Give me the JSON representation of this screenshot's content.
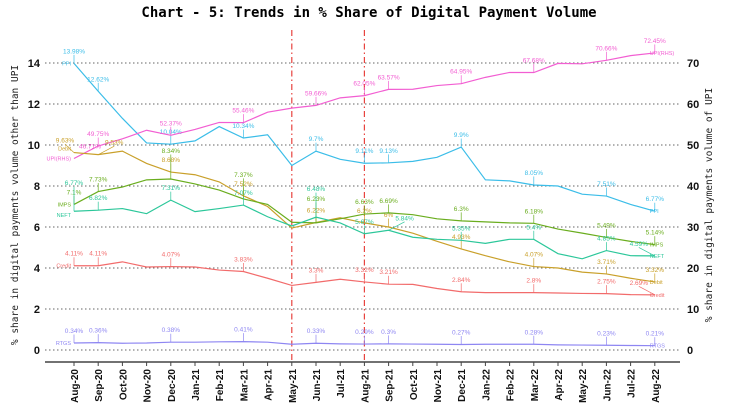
{
  "chart_data": {
    "type": "line",
    "title": "Chart - 5: Trends in % Share of Digital Payment Volume",
    "ylabel_left": "% share in digital payments volume other than UPI",
    "ylabel_right": "% share in digital payments volume of UPI",
    "ylim_left": [
      0,
      14
    ],
    "ylim_right": [
      0,
      70
    ],
    "yticks_left": [
      0,
      2,
      4,
      6,
      8,
      10,
      12,
      14
    ],
    "yticks_right": [
      0,
      10,
      20,
      30,
      40,
      50,
      60,
      70
    ],
    "grid": "horizontal dotted",
    "categories": [
      "Aug-20",
      "Sep-20",
      "Oct-20",
      "Nov-20",
      "Dec-20",
      "Jan-21",
      "Feb-21",
      "Mar-21",
      "Apr-21",
      "May-21",
      "Jun-21",
      "Jul-21",
      "Aug-21",
      "Sep-21",
      "Oct-21",
      "Nov-21",
      "Dec-21",
      "Jan-22",
      "Feb-22",
      "Mar-22",
      "Apr-22",
      "May-22",
      "Jun-22",
      "Jul-22",
      "Aug-22"
    ],
    "vertical_markers": [
      "May-21",
      "Aug-21"
    ],
    "marker_color": "#e8433f",
    "series": [
      {
        "name": "PPI",
        "start_name": "PPI",
        "axis": "left",
        "color": "#3bbde8",
        "values": [
          13.98,
          12.62,
          11.3,
          10.1,
          10.04,
          10.2,
          10.9,
          10.34,
          10.5,
          9.0,
          9.7,
          9.3,
          9.11,
          9.13,
          9.2,
          9.4,
          9.9,
          8.3,
          8.25,
          8.05,
          8.0,
          7.6,
          7.51,
          7.1,
          6.77
        ],
        "labels": [
          [
            0,
            "13.98%"
          ],
          [
            1,
            "12.62%"
          ],
          [
            4,
            "10.04%"
          ],
          [
            7,
            "10.34%"
          ],
          [
            10,
            "9.7%"
          ],
          [
            12,
            "9.11%"
          ],
          [
            13,
            "9.13%"
          ],
          [
            16,
            "9.9%"
          ],
          [
            19,
            "8.05%"
          ],
          [
            22,
            "7.51%"
          ],
          [
            24,
            "6.77%"
          ]
        ]
      },
      {
        "name": "UPI(RHS)",
        "start_name": "UPI(RHS)",
        "axis": "right",
        "color": "#f25ed2",
        "values": [
          46.71,
          49.75,
          51.5,
          53.6,
          52.37,
          53.8,
          55.5,
          55.46,
          58.0,
          59.0,
          59.66,
          61.5,
          62.05,
          63.57,
          63.6,
          64.5,
          64.95,
          66.5,
          67.7,
          67.68,
          69.9,
          69.8,
          70.66,
          71.8,
          72.45
        ],
        "labels": [
          [
            0,
            "46.71%"
          ],
          [
            1,
            "49.75%"
          ],
          [
            4,
            "52.37%"
          ],
          [
            7,
            "55.46%"
          ],
          [
            10,
            "59.66%"
          ],
          [
            12,
            "62.05%"
          ],
          [
            13,
            "63.57%"
          ],
          [
            16,
            "64.95%"
          ],
          [
            19,
            "67.68%"
          ],
          [
            22,
            "70.66%"
          ],
          [
            24,
            "72.45%"
          ]
        ]
      },
      {
        "name": "Debit",
        "start_name": "Debit",
        "axis": "left",
        "color": "#c9a02a",
        "values": [
          9.63,
          9.53,
          9.7,
          9.1,
          8.68,
          8.55,
          8.2,
          7.52,
          7.0,
          5.95,
          6.22,
          6.45,
          6.2,
          6.0,
          5.7,
          5.3,
          4.93,
          4.6,
          4.3,
          4.07,
          4.0,
          3.8,
          3.71,
          3.5,
          3.32
        ],
        "labels": [
          [
            0,
            "9.63%"
          ],
          [
            1,
            "9.53%"
          ],
          [
            4,
            "8.68%"
          ],
          [
            7,
            "7.52%"
          ],
          [
            10,
            "6.22%"
          ],
          [
            12,
            "6.2%"
          ],
          [
            13,
            "6%"
          ],
          [
            16,
            "4.93%"
          ],
          [
            19,
            "4.07%"
          ],
          [
            22,
            "3.71%"
          ],
          [
            24,
            "3.32%"
          ]
        ]
      },
      {
        "name": "IMPS",
        "start_name": "IMPS",
        "axis": "left",
        "color": "#6aad1e",
        "values": [
          7.1,
          7.73,
          7.95,
          8.3,
          8.34,
          8.1,
          7.8,
          7.37,
          7.1,
          6.23,
          6.2,
          6.4,
          6.63,
          6.69,
          6.6,
          6.4,
          6.3,
          6.25,
          6.2,
          6.18,
          5.9,
          5.7,
          5.49,
          5.3,
          5.14
        ],
        "labels": [
          [
            0,
            "7.1%"
          ],
          [
            1,
            "7.73%"
          ],
          [
            4,
            "8.34%"
          ],
          [
            7,
            "7.37%"
          ],
          [
            10,
            "6.23%"
          ],
          [
            12,
            "6.63%"
          ],
          [
            13,
            "6.69%"
          ],
          [
            16,
            "6.3%"
          ],
          [
            19,
            "6.18%"
          ],
          [
            22,
            "5.49%"
          ],
          [
            24,
            "5.14%"
          ]
        ]
      },
      {
        "name": "NEFT",
        "start_name": "NEFT",
        "axis": "left",
        "color": "#2cc79a",
        "values": [
          6.77,
          6.82,
          6.9,
          6.65,
          7.31,
          6.75,
          6.9,
          7.07,
          6.5,
          6.05,
          6.48,
          6.2,
          5.67,
          5.84,
          5.5,
          5.4,
          5.35,
          5.2,
          5.4,
          5.4,
          4.7,
          4.45,
          4.85,
          4.6,
          4.59
        ],
        "labels": [
          [
            0,
            "6.77%"
          ],
          [
            1,
            "6.82%"
          ],
          [
            4,
            "7.31%"
          ],
          [
            7,
            "7.07%"
          ],
          [
            10,
            "6.48%"
          ],
          [
            12,
            "5.67%"
          ],
          [
            13,
            "5.84%"
          ],
          [
            16,
            "5.35%"
          ],
          [
            19,
            "5.4%"
          ],
          [
            22,
            "4.85%"
          ],
          [
            24,
            "4.59%"
          ]
        ]
      },
      {
        "name": "Credit",
        "start_name": "Credit",
        "axis": "left",
        "color": "#f26b6b",
        "values": [
          4.11,
          4.11,
          4.3,
          4.05,
          4.07,
          4.05,
          3.9,
          3.83,
          3.5,
          3.15,
          3.3,
          3.45,
          3.32,
          3.21,
          3.2,
          3.0,
          2.84,
          2.8,
          2.8,
          2.8,
          2.78,
          2.76,
          2.75,
          2.7,
          2.69
        ],
        "labels": [
          [
            0,
            "4.11%"
          ],
          [
            1,
            "4.11%"
          ],
          [
            4,
            "4.07%"
          ],
          [
            7,
            "3.83%"
          ],
          [
            10,
            "3.3%"
          ],
          [
            12,
            "3.32%"
          ],
          [
            13,
            "3.21%"
          ],
          [
            16,
            "2.84%"
          ],
          [
            19,
            "2.8%"
          ],
          [
            22,
            "2.75%"
          ],
          [
            24,
            "2.69%"
          ]
        ]
      },
      {
        "name": "RTGS",
        "start_name": "RTGS",
        "axis": "left",
        "color": "#8e86f2",
        "values": [
          0.34,
          0.36,
          0.33,
          0.34,
          0.38,
          0.38,
          0.4,
          0.41,
          0.38,
          0.28,
          0.33,
          0.3,
          0.29,
          0.3,
          0.29,
          0.28,
          0.27,
          0.28,
          0.28,
          0.28,
          0.25,
          0.24,
          0.23,
          0.22,
          0.21
        ],
        "labels": [
          [
            0,
            "0.34%"
          ],
          [
            1,
            "0.36%"
          ],
          [
            4,
            "0.38%"
          ],
          [
            7,
            "0.41%"
          ],
          [
            10,
            "0.33%"
          ],
          [
            12,
            "0.29%"
          ],
          [
            13,
            "0.3%"
          ],
          [
            16,
            "0.27%"
          ],
          [
            19,
            "0.28%"
          ],
          [
            22,
            "0.23%"
          ],
          [
            24,
            "0.21%"
          ]
        ]
      }
    ]
  }
}
